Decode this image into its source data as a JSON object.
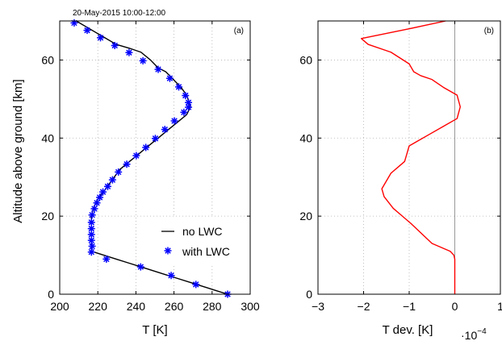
{
  "figure_title": "20-May-2015 10:00-12:00",
  "chart_data": [
    {
      "type": "line",
      "panel_label": "(a)",
      "xlabel": "T [K]",
      "ylabel": "Altitude above ground [km]",
      "xlim": [
        200,
        300
      ],
      "ylim": [
        0,
        70
      ],
      "xticks": [
        200,
        220,
        240,
        260,
        280,
        300
      ],
      "yticks": [
        0,
        20,
        40,
        60
      ],
      "grid": true,
      "legend_position": "lower-right",
      "series": [
        {
          "name": "no LWC",
          "style": "line",
          "color": "#000000",
          "x": [
            288.15,
            281.65,
            275.15,
            268.65,
            262.15,
            255.65,
            249.15,
            242.65,
            236.15,
            229.65,
            223.15,
            216.65,
            216.65,
            216.65,
            216.65,
            216.65,
            216.65,
            217.65,
            218.65,
            219.65,
            220.65,
            222.65,
            225.65,
            228.65,
            231.65,
            236.65,
            241.65,
            246.65,
            251.65,
            256.65,
            261.65,
            266.65,
            268.65,
            266.65,
            263.65,
            259.65,
            255.65,
            251.65,
            247.65,
            242.65,
            236.65,
            229.65,
            222.65,
            215.65,
            208.65
          ],
          "y": [
            0,
            1,
            2,
            3,
            4,
            5,
            6,
            7,
            8,
            9,
            10,
            11,
            12,
            14,
            16,
            18,
            20,
            22,
            23,
            24,
            25,
            26,
            28,
            30,
            32,
            34,
            36,
            38,
            40,
            42,
            44,
            46,
            48,
            51,
            53,
            55,
            57,
            58,
            60,
            62,
            63,
            64,
            66,
            68,
            70
          ]
        },
        {
          "name": "with LWC",
          "style": "markers",
          "marker": "asterisk",
          "color": "#0000ff",
          "x": [
            288.15,
            271.5,
            258.5,
            242.5,
            224.5,
            216.65,
            217.0,
            216.65,
            216.65,
            216.65,
            216.65,
            217.0,
            218.2,
            219.5,
            221.0,
            222.7,
            225.2,
            227.7,
            230.8,
            235.2,
            240.2,
            245.2,
            250.2,
            255.2,
            260.2,
            265.2,
            267.6,
            267.6,
            266.0,
            262.5,
            257.8,
            251.7,
            243.7,
            236.4,
            228.9,
            221.4,
            214.4,
            207.6
          ],
          "y": [
            0,
            2.5,
            4.8,
            7,
            9,
            10.8,
            12.3,
            13.8,
            15.3,
            16.8,
            18.4,
            20.3,
            21.9,
            23.4,
            24.8,
            26.2,
            27.6,
            29.3,
            31.3,
            33.3,
            35.5,
            37.6,
            39.9,
            42.2,
            44.4,
            46.6,
            47.9,
            49.1,
            50.9,
            53.1,
            55.3,
            57.6,
            59.8,
            61.9,
            63.7,
            65.7,
            67.6,
            69.5
          ]
        }
      ]
    },
    {
      "type": "line",
      "panel_label": "(b)",
      "xlabel": "T dev. [K]",
      "x_multiplier_base": "·10",
      "x_multiplier_exp": "−4",
      "xlim": [
        -3,
        1
      ],
      "ylim": [
        0,
        70
      ],
      "xticks": [
        -3,
        -2,
        -1,
        0,
        1
      ],
      "xticklabels": [
        "−3",
        "−2",
        "−1",
        "0",
        "1"
      ],
      "yticks": [
        0,
        20,
        40,
        60
      ],
      "grid": true,
      "zero_line": {
        "x": 0,
        "color": "#999999"
      },
      "series": [
        {
          "style": "line",
          "color": "#ff0000",
          "x": [
            0,
            0,
            0,
            -0.02,
            -0.1,
            -0.5,
            -0.95,
            -1.15,
            -1.35,
            -1.55,
            -1.6,
            -1.55,
            -1.4,
            -1.2,
            -1.1,
            -1.05,
            -1.0,
            -0.85,
            -0.55,
            -0.25,
            0.05,
            0.12,
            0.05,
            -0.25,
            -0.5,
            -0.75,
            -0.9,
            -1.0,
            -1.4,
            -1.9,
            -2.05,
            -1.0,
            -0.6,
            -0.2
          ],
          "y": [
            0,
            5,
            9,
            10,
            11,
            13,
            18,
            20,
            22,
            25,
            27,
            28,
            31,
            33,
            34,
            36,
            38,
            39,
            41,
            43,
            45,
            48,
            51,
            53,
            55,
            56,
            57,
            59,
            62,
            64,
            65.5,
            68,
            69,
            70
          ]
        }
      ]
    }
  ]
}
